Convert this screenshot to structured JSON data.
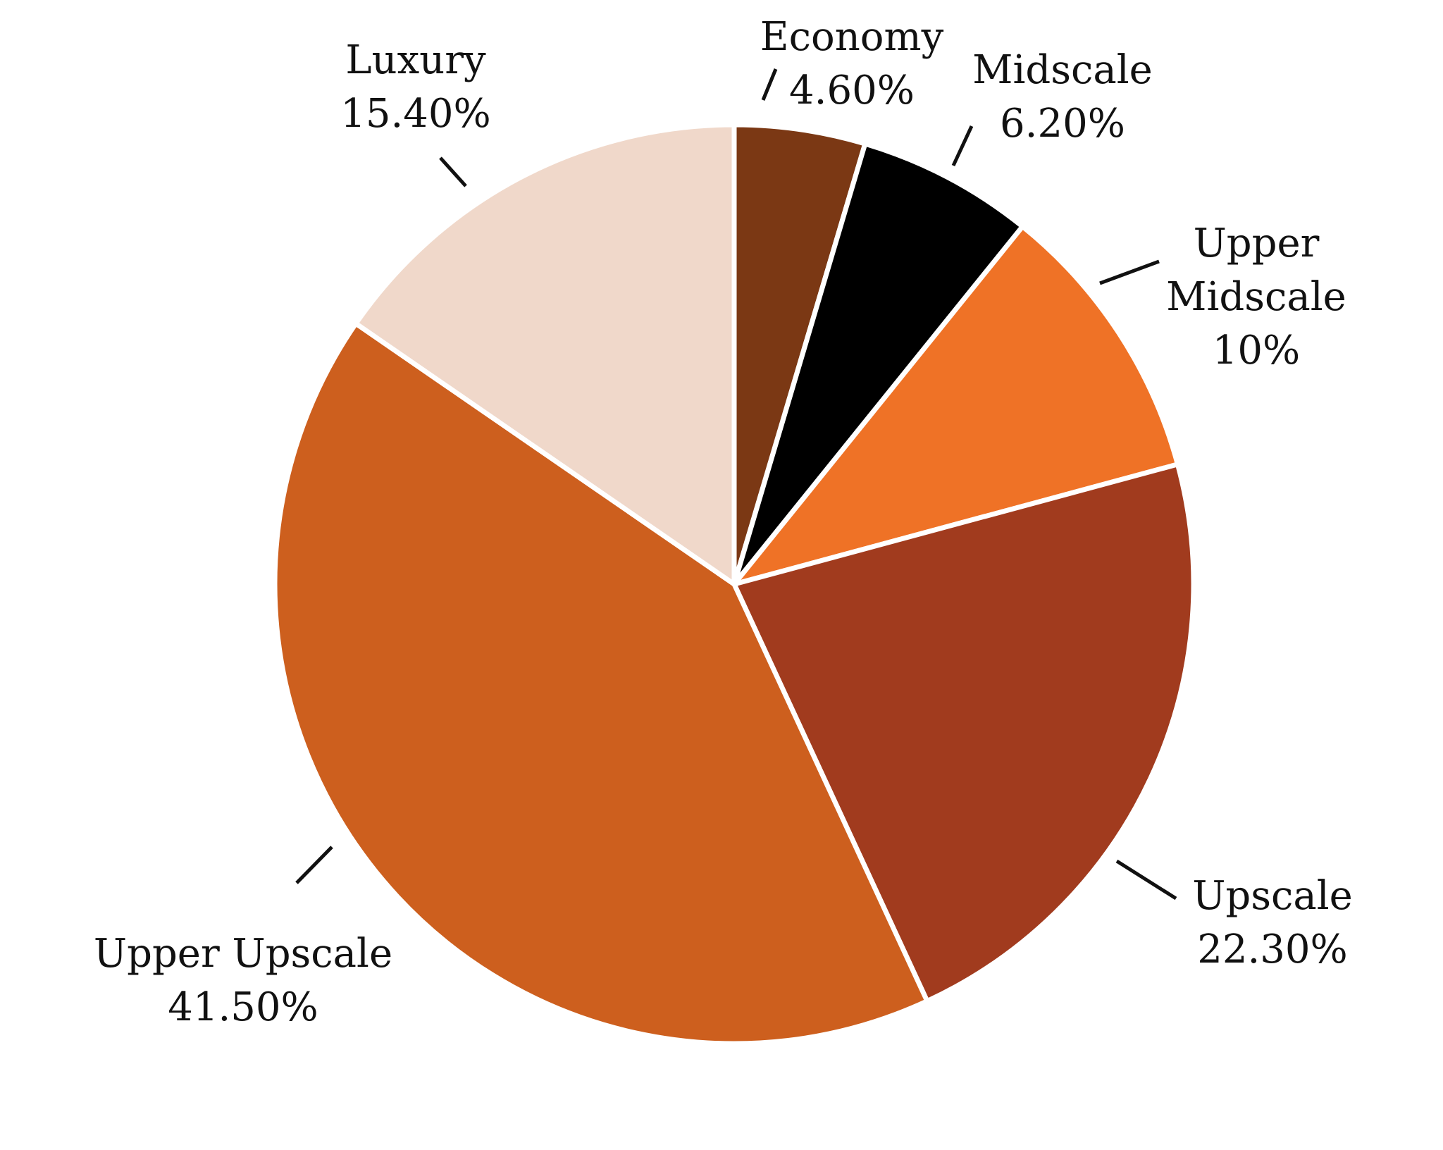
{
  "chart_data": {
    "type": "pie",
    "title": "",
    "slices": [
      {
        "label": "Economy",
        "label_lines": [
          "Economy"
        ],
        "value_text": "4.60%",
        "value": 4.6,
        "color": "#7B3814"
      },
      {
        "label": "Midscale",
        "label_lines": [
          "Midscale"
        ],
        "value_text": "6.20%",
        "value": 6.2,
        "color": "#000000"
      },
      {
        "label": "Upper Midscale",
        "label_lines": [
          "Upper",
          "Midscale"
        ],
        "value_text": "10%",
        "value": 10.0,
        "color": "#EF7226"
      },
      {
        "label": "Upscale",
        "label_lines": [
          "Upscale"
        ],
        "value_text": "22.30%",
        "value": 22.3,
        "color": "#A13B1E"
      },
      {
        "label": "Upper Upscale",
        "label_lines": [
          "Upper Upscale"
        ],
        "value_text": "41.50%",
        "value": 41.5,
        "color": "#CD5F1E"
      },
      {
        "label": "Luxury",
        "label_lines": [
          "Luxury"
        ],
        "value_text": "15.40%",
        "value": 15.4,
        "color": "#F0D8CA"
      }
    ],
    "start": "12 o'clock",
    "direction": "clockwise",
    "separator_color": "#ffffff",
    "leader_color": "#111111",
    "legend": "none"
  }
}
